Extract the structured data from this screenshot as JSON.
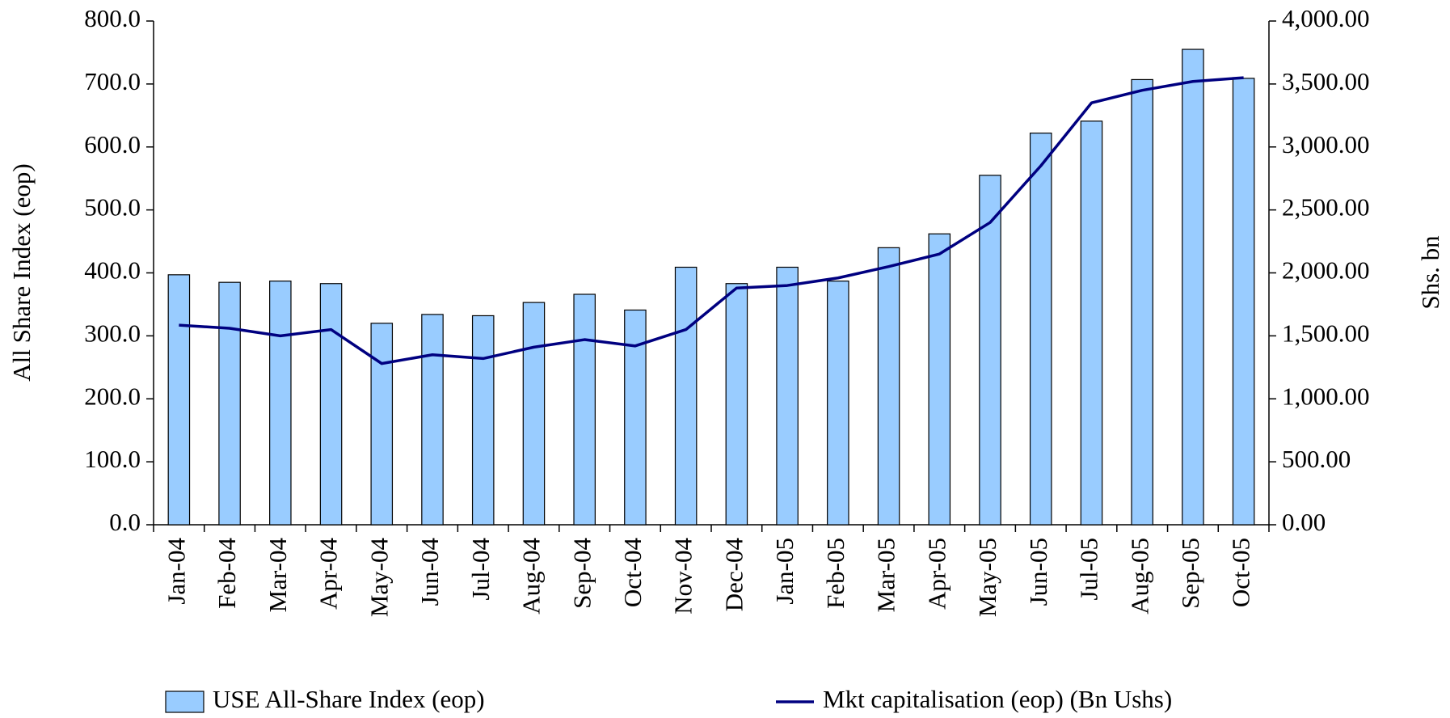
{
  "chart_data": {
    "type": "bar-line",
    "categories": [
      "Jan-04",
      "Feb-04",
      "Mar-04",
      "Apr-04",
      "May-04",
      "Jun-04",
      "Jul-04",
      "Aug-04",
      "Sep-04",
      "Oct-04",
      "Nov-04",
      "Dec-04",
      "Jan-05",
      "Feb-05",
      "Mar-05",
      "Apr-05",
      "May-05",
      "Jun-05",
      "Jul-05",
      "Aug-05",
      "Sep-05",
      "Oct-05"
    ],
    "series": [
      {
        "name": "USE All-Share Index (eop)",
        "type": "bar",
        "color": "#99ccff",
        "values": [
          397,
          385,
          387,
          383,
          320,
          334,
          332,
          353,
          366,
          341,
          409,
          383,
          409,
          387,
          440,
          462,
          555,
          622,
          641,
          707,
          755,
          709
        ]
      },
      {
        "name": "Mkt capitalisation (eop) (Bn Ushs)",
        "type": "line",
        "axis": "y2",
        "color": "#000080",
        "values": [
          1585,
          1560,
          1500,
          1550,
          1280,
          1350,
          1320,
          1410,
          1470,
          1420,
          1550,
          1880,
          1900,
          1960,
          2050,
          2150,
          2400,
          2850,
          3350,
          3450,
          3520,
          3550
        ]
      }
    ],
    "ylabel": "All Share Index (eop)",
    "y2label": "Shs. bn",
    "ylim": [
      0,
      800
    ],
    "yticks": [
      {
        "value": 0,
        "label": "0.0"
      },
      {
        "value": 100,
        "label": "100.0"
      },
      {
        "value": 200,
        "label": "200.0"
      },
      {
        "value": 300,
        "label": "300.0"
      },
      {
        "value": 400,
        "label": "400.0"
      },
      {
        "value": 500,
        "label": "500.0"
      },
      {
        "value": 600,
        "label": "600.0"
      },
      {
        "value": 700,
        "label": "700.0"
      },
      {
        "value": 800,
        "label": "800.0"
      }
    ],
    "y2lim": [
      0,
      4000
    ],
    "y2ticks": [
      {
        "value": 0,
        "label": "0.00"
      },
      {
        "value": 500,
        "label": "500.00"
      },
      {
        "value": 1000,
        "label": "1,000.00"
      },
      {
        "value": 1500,
        "label": "1,500.00"
      },
      {
        "value": 2000,
        "label": "2,000.00"
      },
      {
        "value": 2500,
        "label": "2,500.00"
      },
      {
        "value": 3000,
        "label": "3,000.00"
      },
      {
        "value": 3500,
        "label": "3,500.00"
      },
      {
        "value": 4000,
        "label": "4,000.00"
      }
    ],
    "legend": "bottom"
  }
}
